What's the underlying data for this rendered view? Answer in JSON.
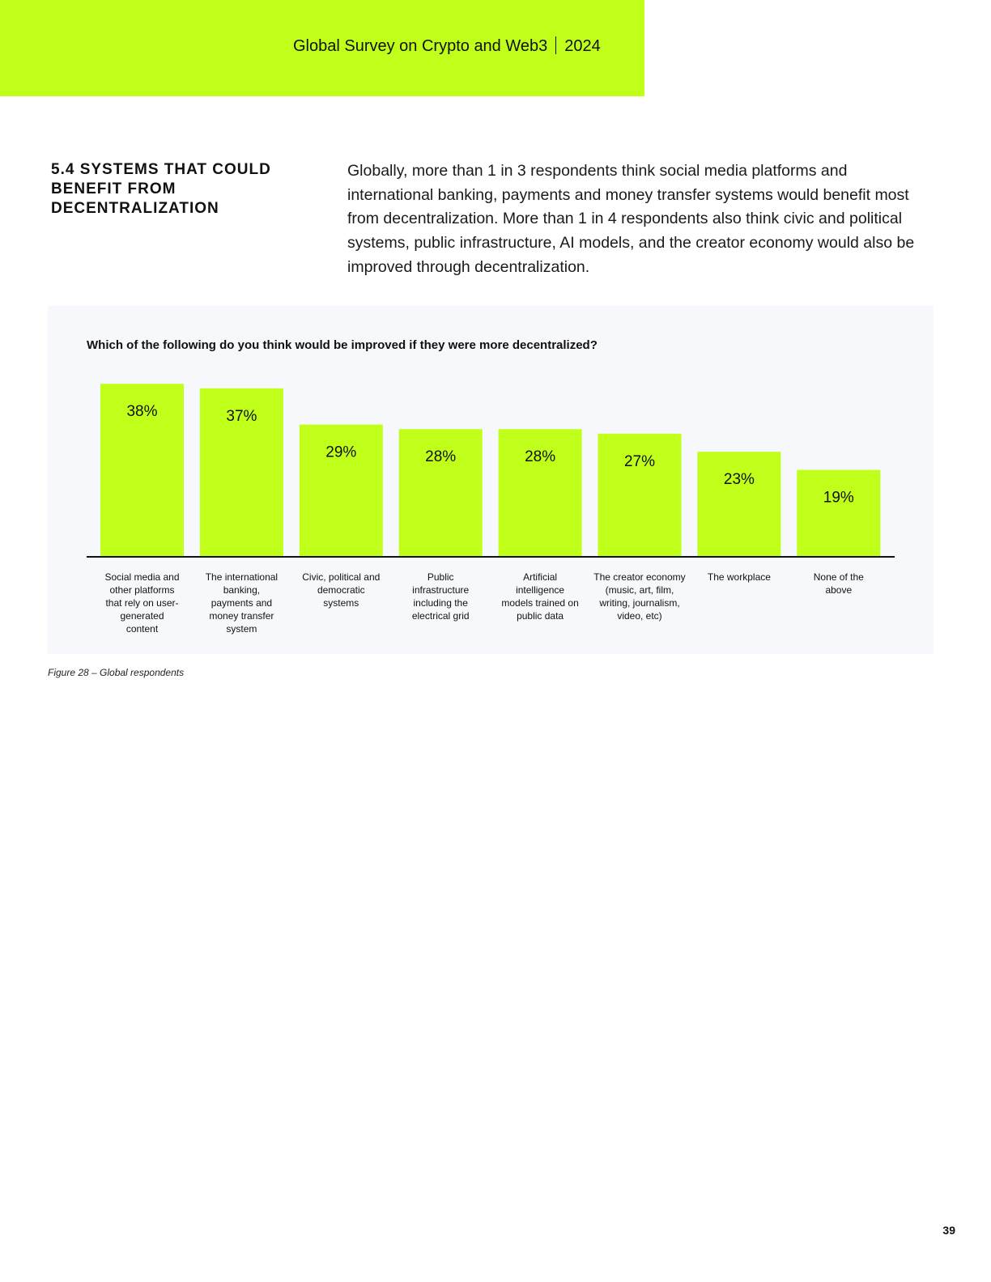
{
  "header": {
    "title": "Global Survey on Crypto and Web3",
    "year": "2024"
  },
  "section": {
    "heading": "5.4 SYSTEMS THAT COULD BENEFIT FROM DECENTRALIZATION",
    "intro": "Globally, more than 1 in 3 respondents think social media platforms and international banking, payments and money transfer systems would benefit most from decentralization. More than 1 in 4 respondents also think civic and political systems, public infrastructure, AI models, and the creator economy would also be improved through decentralization."
  },
  "chart_data": {
    "type": "bar",
    "title": "Which of the following do you think would be improved if they were more decentralized?",
    "categories": [
      "Social media and other platforms that rely on user-generated content",
      "The international banking, payments and money transfer system",
      "Civic, political and democratic systems",
      "Public infrastructure including the electrical grid",
      "Artificial intelligence models trained on public data",
      "The creator economy (music, art, film, writing, journalism, video, etc)",
      "The workplace",
      "None of the above"
    ],
    "category_label_lines": [
      [
        "Social media and",
        "other platforms",
        "that rely on user-",
        "generated",
        "content"
      ],
      [
        "The international",
        "banking,",
        "payments and",
        "money transfer",
        "system"
      ],
      [
        "Civic, political and",
        "democratic",
        "systems"
      ],
      [
        "Public",
        "infrastructure",
        "including the",
        "electrical grid"
      ],
      [
        "Artificial",
        "intelligence",
        "models trained on",
        "public data"
      ],
      [
        "The creator economy",
        "(music, art, film,",
        "writing, journalism,",
        "video, etc)"
      ],
      [
        "The workplace"
      ],
      [
        "None of the",
        "above"
      ]
    ],
    "values": [
      38,
      37,
      29,
      28,
      28,
      27,
      23,
      19
    ],
    "value_labels": [
      "38%",
      "37%",
      "29%",
      "28%",
      "28%",
      "27%",
      "23%",
      "19%"
    ],
    "unit": "%",
    "bar_color": "#c0ff1a",
    "grid": false,
    "legend": "none"
  },
  "figure": {
    "caption": "Figure 28 – Global respondents"
  },
  "page": {
    "number": "39"
  },
  "colors": {
    "accent": "#c0ff1a",
    "panel_background": "#f7f8fc",
    "text": "#111111"
  }
}
